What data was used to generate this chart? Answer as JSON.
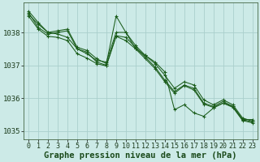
{
  "background_color": "#cceae7",
  "grid_color": "#aacfcc",
  "line_color": "#1a5c1a",
  "marker_color": "#1a5c1a",
  "xlabel": "Graphe pression niveau de la mer (hPa)",
  "xlabel_fontsize": 7.5,
  "ylabel_fontsize": 6.5,
  "tick_fontsize": 6.0,
  "ylim": [
    1034.75,
    1038.9
  ],
  "xlim": [
    -0.5,
    23.5
  ],
  "yticks": [
    1035,
    1036,
    1037,
    1038
  ],
  "xticks": [
    0,
    1,
    2,
    3,
    4,
    5,
    6,
    7,
    8,
    9,
    10,
    11,
    12,
    13,
    14,
    15,
    16,
    17,
    18,
    19,
    20,
    21,
    22,
    23
  ],
  "series": [
    [
      1038.65,
      1038.3,
      1038.0,
      1038.05,
      1038.1,
      1037.55,
      1037.45,
      1037.2,
      1037.05,
      1038.5,
      1038.0,
      1037.5,
      1037.3,
      1037.1,
      1036.8,
      1035.65,
      1035.8,
      1035.55,
      1035.45,
      1035.7,
      1035.85,
      1035.75,
      1035.35,
      1035.35
    ],
    [
      1038.55,
      1038.25,
      1038.0,
      1037.95,
      1037.85,
      1037.5,
      1037.35,
      1037.15,
      1037.1,
      1038.0,
      1038.0,
      1037.6,
      1037.3,
      1037.05,
      1036.7,
      1036.3,
      1036.5,
      1036.4,
      1035.95,
      1035.8,
      1035.95,
      1035.8,
      1035.4,
      1035.3
    ],
    [
      1038.6,
      1038.15,
      1037.95,
      1038.0,
      1038.05,
      1037.5,
      1037.4,
      1037.1,
      1037.0,
      1037.9,
      1037.85,
      1037.55,
      1037.25,
      1036.95,
      1036.55,
      1036.2,
      1036.4,
      1036.3,
      1035.85,
      1035.75,
      1035.9,
      1035.75,
      1035.35,
      1035.28
    ],
    [
      1038.5,
      1038.1,
      1037.88,
      1037.85,
      1037.75,
      1037.35,
      1037.22,
      1037.05,
      1036.98,
      1037.88,
      1037.75,
      1037.5,
      1037.2,
      1036.9,
      1036.5,
      1036.15,
      1036.38,
      1036.25,
      1035.82,
      1035.72,
      1035.85,
      1035.72,
      1035.32,
      1035.25
    ]
  ]
}
